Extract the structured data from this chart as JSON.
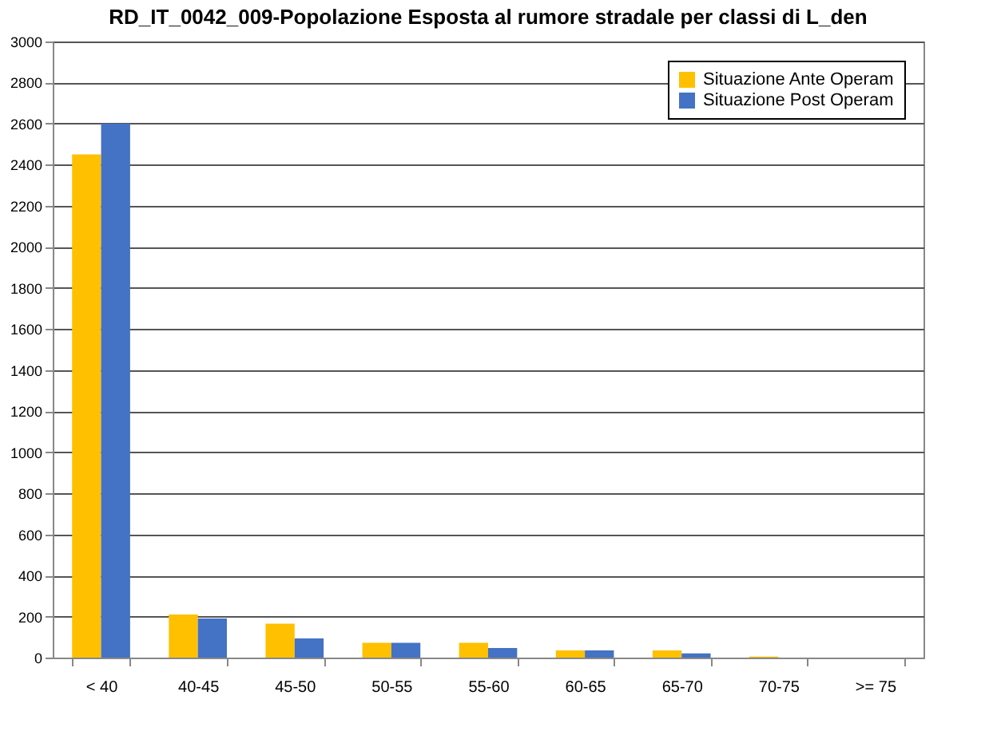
{
  "chart_data": {
    "type": "bar",
    "title": "RD_IT_0042_009-Popolazione Esposta al rumore stradale per classi di L_den",
    "categories": [
      "< 40",
      "40-45",
      "45-50",
      "50-55",
      "55-60",
      "60-65",
      "65-70",
      "70-75",
      ">= 75"
    ],
    "series": [
      {
        "name": "Situazione Ante Operam",
        "color": "#ffc000",
        "values": [
          2450,
          210,
          165,
          72,
          72,
          35,
          35,
          5,
          0
        ]
      },
      {
        "name": "Situazione Post Operam",
        "color": "#4472c4",
        "values": [
          2600,
          190,
          93,
          72,
          47,
          35,
          20,
          0,
          0
        ]
      }
    ],
    "ylim": [
      0,
      3000
    ],
    "yticks": [
      0,
      200,
      400,
      600,
      800,
      1000,
      1200,
      1400,
      1600,
      1800,
      2000,
      2200,
      2400,
      2600,
      2800,
      3000
    ],
    "grid": "y",
    "legend": "top right"
  }
}
